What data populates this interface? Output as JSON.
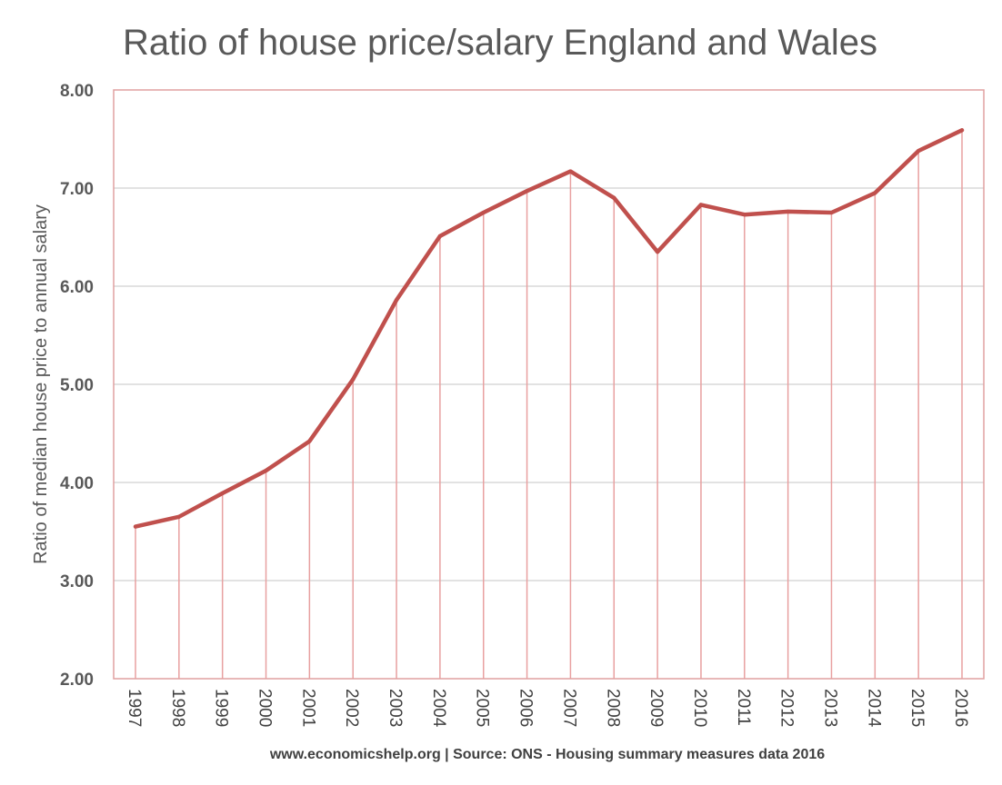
{
  "chart_data": {
    "type": "line",
    "title": "Ratio of house price/salary England and Wales",
    "xlabel": "www.economicshelp.org | Source: ONS - Housing summary measures data 2016",
    "ylabel": "Ratio of median house price to annual salary",
    "ylim": [
      2.0,
      8.0
    ],
    "yticks": [
      "2.00",
      "3.00",
      "4.00",
      "5.00",
      "6.00",
      "7.00",
      "8.00"
    ],
    "ytick_values": [
      2,
      3,
      4,
      5,
      6,
      7,
      8
    ],
    "categories": [
      "1997",
      "1998",
      "1999",
      "2000",
      "2001",
      "2002",
      "2003",
      "2004",
      "2005",
      "2006",
      "2007",
      "2008",
      "2009",
      "2010",
      "2011",
      "2012",
      "2013",
      "2014",
      "2015",
      "2016"
    ],
    "series": [
      {
        "values": [
          3.55,
          3.65,
          3.89,
          4.12,
          4.42,
          5.05,
          5.86,
          6.51,
          6.75,
          6.97,
          7.17,
          6.9,
          6.35,
          6.83,
          6.73,
          6.76,
          6.75,
          6.95,
          7.38,
          7.59
        ]
      }
    ],
    "grid": true,
    "drop_lines": true,
    "legend": "none",
    "colors": {
      "line": "#c0504d",
      "drop_line": "#e8a0a0",
      "border": "#e0a0a0",
      "grid": "#d9d9d9"
    }
  }
}
